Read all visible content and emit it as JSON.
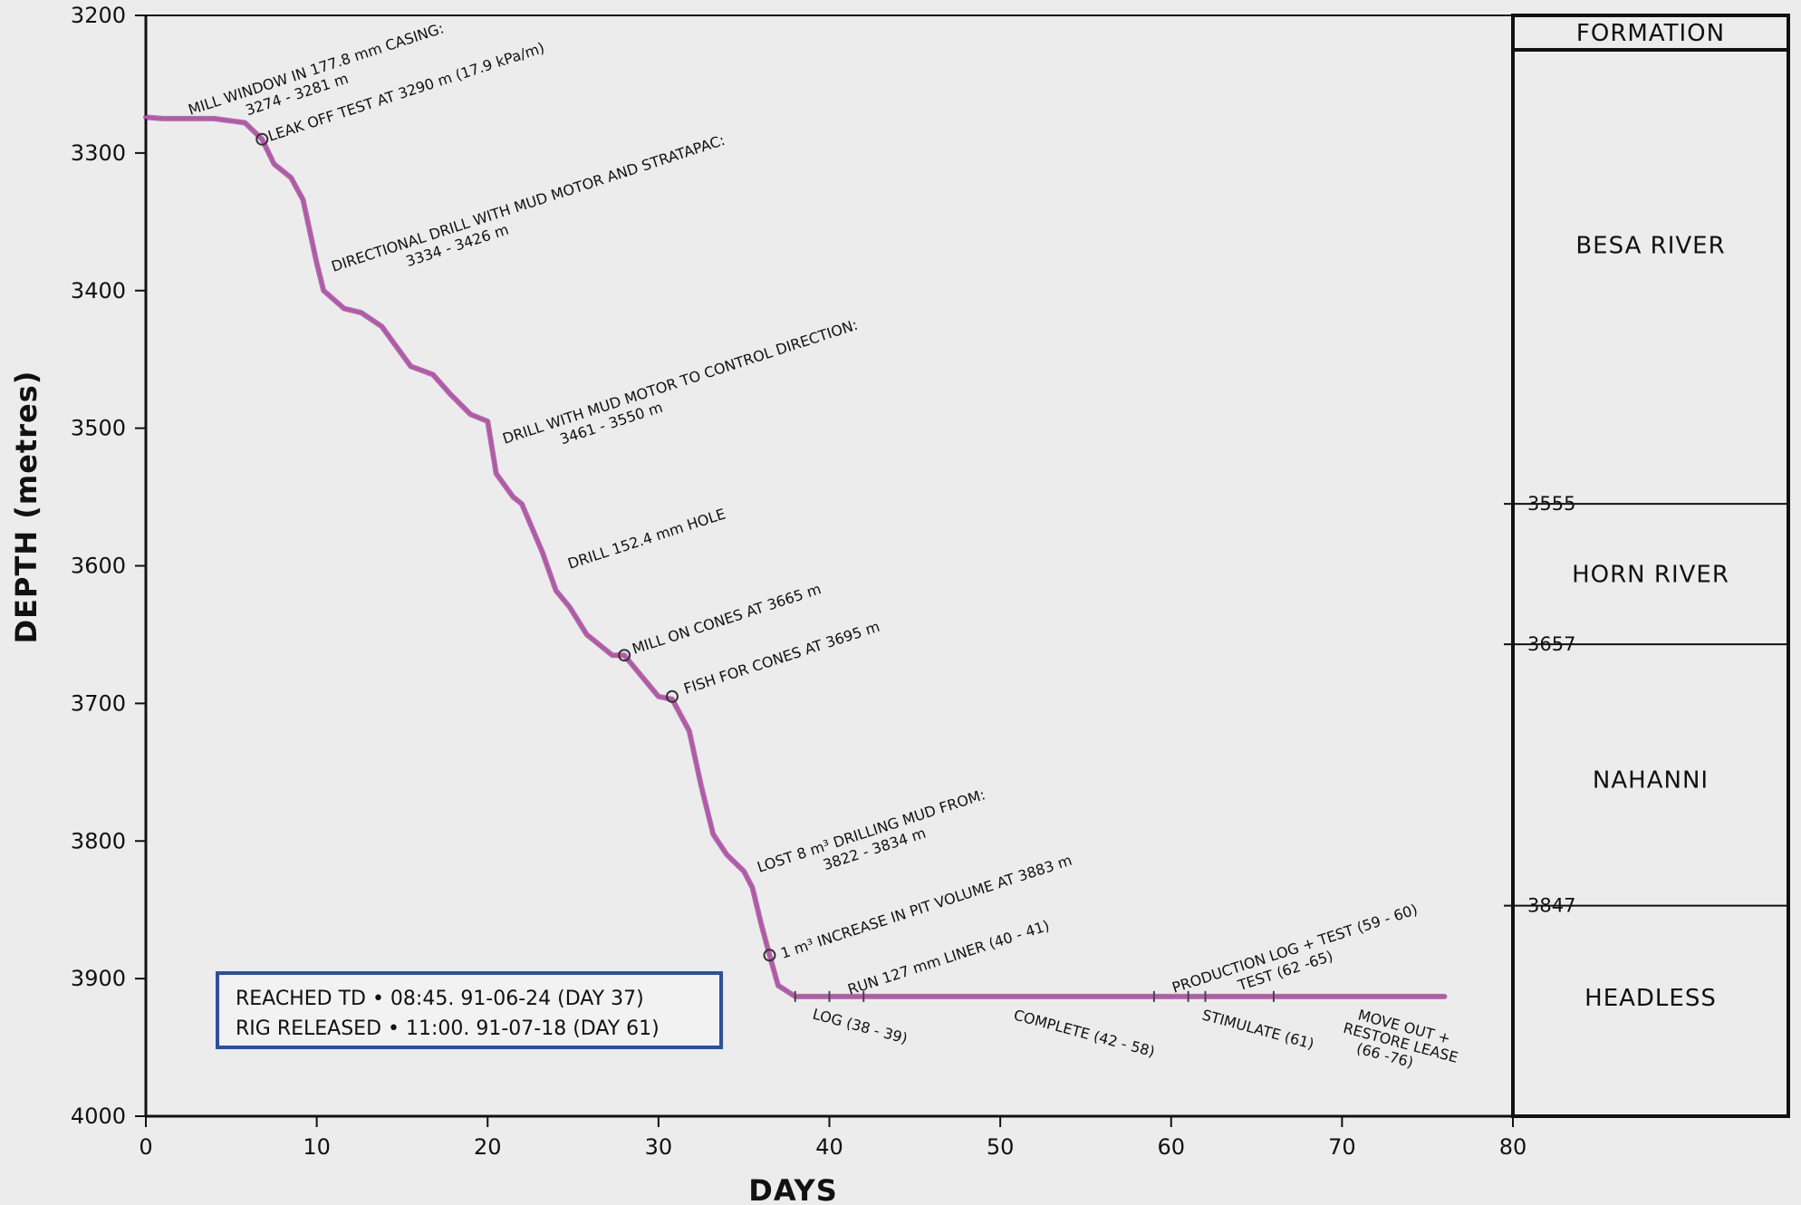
{
  "chart_data": {
    "type": "line",
    "xlabel": "DAYS",
    "ylabel": "DEPTH (metres)",
    "xlim": [
      0,
      80
    ],
    "ylim": [
      3200,
      4000
    ],
    "y_inverted": true,
    "x_ticks": [
      "0",
      "10",
      "20",
      "30",
      "40",
      "50",
      "60",
      "70",
      "80"
    ],
    "y_ticks": [
      "3200",
      "3300",
      "3400",
      "3500",
      "3600",
      "3700",
      "3800",
      "3900",
      "4000"
    ],
    "series": [
      {
        "name": "",
        "color": "#c04fb4",
        "x": [
          0,
          1,
          4,
          5.8,
          6.8,
          7.5,
          8.5,
          9.2,
          10.0,
          10.4,
          11.6,
          12.6,
          13.8,
          15.5,
          16.8,
          17.8,
          19.0,
          20.0,
          20.5,
          21.5,
          22.0,
          23.2,
          24.0,
          24.8,
          25.8,
          26.5,
          27.3,
          28.0,
          29.0,
          30.0,
          30.8,
          31.8,
          32.5,
          33.2,
          34.0,
          35.0,
          35.5,
          36.0,
          36.5,
          37.0,
          38.0,
          40,
          45,
          50,
          55,
          60,
          65,
          70,
          76
        ],
        "y": [
          3274,
          3275,
          3275,
          3278,
          3290,
          3308,
          3318,
          3334,
          3380,
          3400,
          3413,
          3416,
          3426,
          3455,
          3461,
          3475,
          3490,
          3495,
          3533,
          3550,
          3555,
          3590,
          3618,
          3630,
          3650,
          3657,
          3665,
          3665,
          3680,
          3695,
          3697,
          3720,
          3760,
          3795,
          3810,
          3822,
          3834,
          3860,
          3883,
          3905,
          3913,
          3913,
          3913,
          3913,
          3913,
          3913,
          3913,
          3913,
          3913
        ]
      }
    ],
    "markers": [
      {
        "x": 6.8,
        "y": 3290
      },
      {
        "x": 28.0,
        "y": 3665
      },
      {
        "x": 30.8,
        "y": 3695
      },
      {
        "x": 36.5,
        "y": 3883
      }
    ],
    "annotations": [
      {
        "lines": [
          "MILL WINDOW IN 177.8 mm CASING:",
          "3274 - 3281 m"
        ]
      },
      {
        "lines": [
          "LEAK OFF TEST AT 3290 m (17.9 kPa/m)"
        ]
      },
      {
        "lines": [
          "DIRECTIONAL DRILL WITH MUD MOTOR AND STRATAPAC:",
          "3334 - 3426 m"
        ]
      },
      {
        "lines": [
          "DRILL WITH MUD MOTOR TO CONTROL DIRECTION:",
          "3461 - 3550 m"
        ]
      },
      {
        "lines": [
          "DRILL 152.4 mm HOLE"
        ]
      },
      {
        "lines": [
          "MILL ON CONES AT 3665 m"
        ]
      },
      {
        "lines": [
          "FISH FOR CONES AT 3695 m"
        ]
      },
      {
        "lines": [
          "LOST 8 m³ DRILLING MUD FROM:",
          "3822 - 3834 m"
        ]
      },
      {
        "lines": [
          "1 m³ INCREASE IN PIT VOLUME AT 3883 m"
        ]
      },
      {
        "lines": [
          "RUN 127 mm LINER (40 - 41)"
        ]
      },
      {
        "lines": [
          "PRODUCTION LOG + TEST (59 - 60)",
          "TEST (62 -65)"
        ]
      },
      {
        "lines": [
          "LOG (38 - 39)"
        ]
      },
      {
        "lines": [
          "COMPLETE (42 - 58)"
        ]
      },
      {
        "lines": [
          "STIMULATE (61)"
        ]
      },
      {
        "lines": [
          "MOVE OUT +",
          "RESTORE LEASE",
          "(66 -76)"
        ]
      }
    ],
    "formations": {
      "header": "FORMATION",
      "boundaries": [
        "3555",
        "3657",
        "3847"
      ],
      "names": [
        "BESA RIVER",
        "HORN RIVER",
        "NAHANNI",
        "HEADLESS"
      ]
    }
  },
  "summary": {
    "line1": "REACHED TD • 08:45. 91-06-24 (DAY 37)",
    "line2": "RIG RELEASED • 11:00. 91-07-18 (DAY 61)"
  }
}
